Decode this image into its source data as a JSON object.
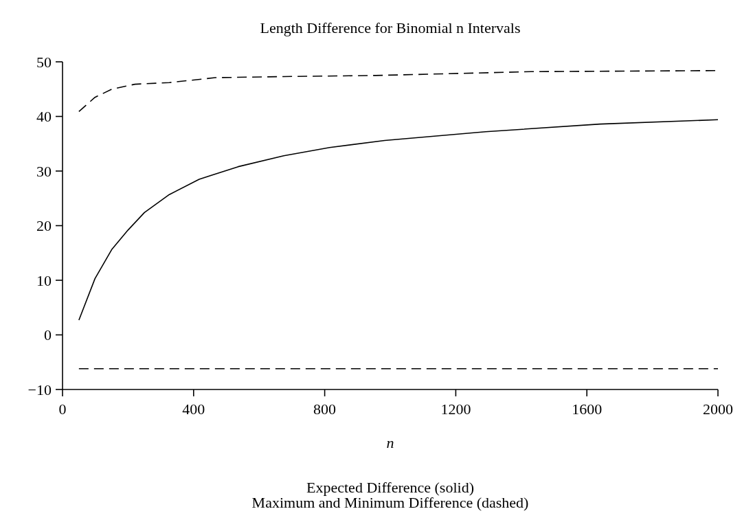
{
  "chart_data": {
    "type": "line",
    "title": "Length Difference for Binomial n Intervals",
    "xlabel": "n",
    "annotations": [
      "Expected Difference (solid)",
      "Maximum and Minimum Difference (dashed)"
    ],
    "xlim": [
      0,
      2000
    ],
    "xticks": [
      0,
      400,
      800,
      1200,
      1600,
      2000
    ],
    "ylim": [
      -10,
      50
    ],
    "yticks": [
      -10,
      0,
      10,
      20,
      30,
      40,
      50
    ],
    "grid": false,
    "series": [
      {
        "color": "#000000",
        "line_style": "solid",
        "x": [
          50,
          99,
          151,
          200,
          250,
          326,
          417,
          536,
          675,
          815,
          983,
          1291,
          1640,
          2000
        ],
        "values": [
          2.7,
          10.3,
          15.7,
          19.2,
          22.4,
          25.7,
          28.5,
          30.8,
          32.8,
          34.3,
          35.6,
          37.2,
          38.6,
          39.4
        ]
      },
      {
        "color": "#000000",
        "line_style": "dashed",
        "x": [
          50,
          99,
          151,
          221,
          326,
          466,
          675,
          955,
          1430,
          2000
        ],
        "values": [
          40.9,
          43.5,
          45.0,
          45.9,
          46.2,
          47.1,
          47.3,
          47.5,
          48.2,
          48.4
        ]
      },
      {
        "color": "#000000",
        "line_style": "dashed",
        "x": [
          50,
          2000
        ],
        "values": [
          -6.2,
          -6.2
        ]
      }
    ]
  }
}
